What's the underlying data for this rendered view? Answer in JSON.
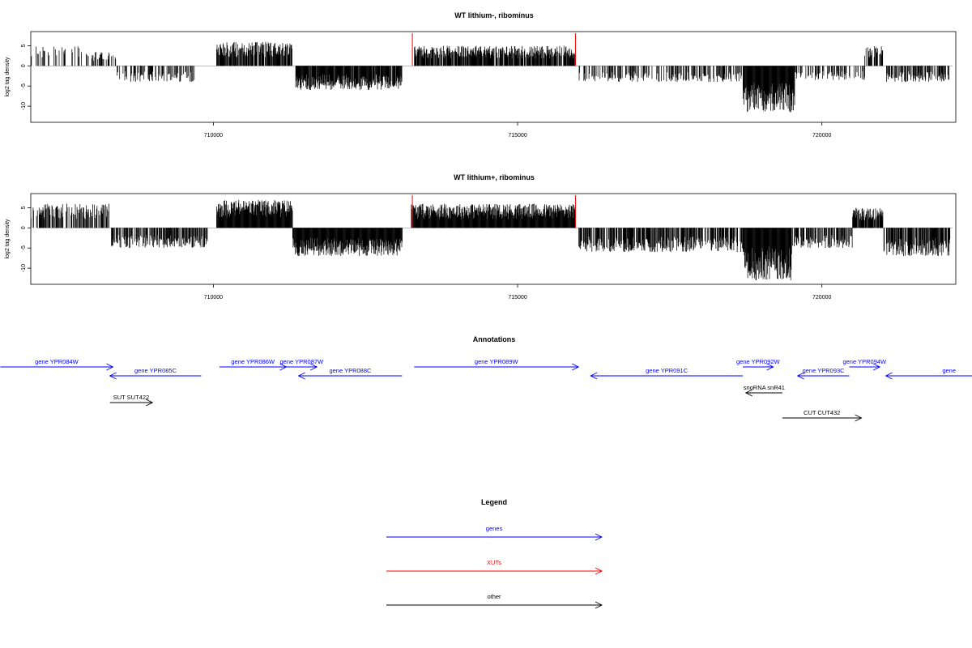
{
  "colors": {
    "genes": "#0000ff",
    "xuts": "#ff0000",
    "other": "#000000"
  },
  "chart_data": [
    {
      "type": "bar",
      "title": "WT lithium-, ribominus",
      "ylabel": "log2 tag density",
      "xlim": [
        707000,
        722200
      ],
      "ylim": [
        -14,
        8.5
      ],
      "xticks": [
        710000,
        715000,
        720000
      ],
      "xtick_labels": [
        "710000",
        "715000",
        "720000"
      ],
      "yticks": [
        5,
        0,
        -5,
        -10
      ],
      "ytick_labels": [
        "5",
        "0",
        "-5",
        "-10"
      ],
      "red_markers": [
        713270,
        715950
      ],
      "segments": [
        {
          "start": 707000,
          "end": 707900,
          "sign": 1,
          "max": 5,
          "density": 0.25
        },
        {
          "start": 707900,
          "end": 708400,
          "sign": 1,
          "max": 3.5,
          "density": 0.35
        },
        {
          "start": 708400,
          "end": 709700,
          "sign": -1,
          "max": 4,
          "density": 0.35
        },
        {
          "start": 710050,
          "end": 711300,
          "sign": 1,
          "max": 6,
          "density": 0.85
        },
        {
          "start": 711350,
          "end": 713100,
          "sign": -1,
          "max": 6,
          "density": 0.95
        },
        {
          "start": 713300,
          "end": 715950,
          "sign": 1,
          "max": 5,
          "density": 0.85
        },
        {
          "start": 716000,
          "end": 718700,
          "sign": -1,
          "max": 4,
          "density": 0.45
        },
        {
          "start": 718700,
          "end": 719550,
          "sign": -1,
          "max": 11.5,
          "density": 1.0
        },
        {
          "start": 719550,
          "end": 720700,
          "sign": -1,
          "max": 3.5,
          "density": 0.4
        },
        {
          "start": 720700,
          "end": 721000,
          "sign": 1,
          "max": 5,
          "density": 0.6
        },
        {
          "start": 721050,
          "end": 722100,
          "sign": -1,
          "max": 4,
          "density": 0.6
        }
      ]
    },
    {
      "type": "bar",
      "title": "WT lithium+, ribominus",
      "ylabel": "log2 tag density",
      "xlim": [
        707000,
        722200
      ],
      "ylim": [
        -14,
        8.5
      ],
      "xticks": [
        710000,
        715000,
        720000
      ],
      "xtick_labels": [
        "710000",
        "715000",
        "720000"
      ],
      "yticks": [
        5,
        0,
        -5,
        -10
      ],
      "ytick_labels": [
        "5",
        "0",
        "-5",
        "-10"
      ],
      "red_markers": [
        713270,
        715950
      ],
      "segments": [
        {
          "start": 707000,
          "end": 708300,
          "sign": 1,
          "max": 6,
          "density": 0.55
        },
        {
          "start": 708300,
          "end": 709900,
          "sign": -1,
          "max": 5,
          "density": 0.6
        },
        {
          "start": 710050,
          "end": 711300,
          "sign": 1,
          "max": 7,
          "density": 1.0
        },
        {
          "start": 711300,
          "end": 713100,
          "sign": -1,
          "max": 7,
          "density": 1.0
        },
        {
          "start": 713250,
          "end": 715950,
          "sign": 1,
          "max": 6,
          "density": 1.0
        },
        {
          "start": 716000,
          "end": 718700,
          "sign": -1,
          "max": 6,
          "density": 0.7
        },
        {
          "start": 718700,
          "end": 719500,
          "sign": -1,
          "max": 13,
          "density": 1.0
        },
        {
          "start": 719500,
          "end": 720500,
          "sign": -1,
          "max": 5,
          "density": 0.6
        },
        {
          "start": 720500,
          "end": 721000,
          "sign": 1,
          "max": 5,
          "density": 0.9
        },
        {
          "start": 721000,
          "end": 722100,
          "sign": -1,
          "max": 7,
          "density": 0.7
        }
      ]
    }
  ],
  "annotations": {
    "title": "Annotations",
    "features": [
      {
        "label": "gene YPR084W",
        "type": "genes",
        "start": 706500,
        "end": 708350,
        "strand": "+",
        "row": 0
      },
      {
        "label": "gene YPR085C",
        "type": "genes",
        "start": 708300,
        "end": 709800,
        "strand": "-",
        "row": 1
      },
      {
        "label": "gene YPR086W",
        "type": "genes",
        "start": 710100,
        "end": 711200,
        "strand": "+",
        "row": 0
      },
      {
        "label": "gene YPR087W",
        "type": "genes",
        "start": 711200,
        "end": 711700,
        "strand": "+",
        "row": 0
      },
      {
        "label": "gene YPR088C",
        "type": "genes",
        "start": 711400,
        "end": 713100,
        "strand": "-",
        "row": 1
      },
      {
        "label": "gene YPR089W",
        "type": "genes",
        "start": 713300,
        "end": 716000,
        "strand": "+",
        "row": 0
      },
      {
        "label": "gene YPR091C",
        "type": "genes",
        "start": 716200,
        "end": 718700,
        "strand": "-",
        "row": 1
      },
      {
        "label": "gene YPR092W",
        "type": "genes",
        "start": 718700,
        "end": 719200,
        "strand": "+",
        "row": 0
      },
      {
        "label": "gene YPR093C",
        "type": "genes",
        "start": 719600,
        "end": 720450,
        "strand": "-",
        "row": 1
      },
      {
        "label": "gene YPR094W",
        "type": "genes",
        "start": 720450,
        "end": 720950,
        "strand": "+",
        "row": 0
      },
      {
        "label": "gene",
        "type": "genes",
        "start": 721050,
        "end": 724000,
        "strand": "-",
        "row": 1
      },
      {
        "label": "SUT SUT422",
        "type": "other",
        "start": 708300,
        "end": 709000,
        "strand": "+",
        "row": 2
      },
      {
        "label": "snoRNA snR41",
        "type": "other",
        "start": 718750,
        "end": 719350,
        "strand": "-",
        "row": 3
      },
      {
        "label": "CUT CUT432",
        "type": "other",
        "start": 719350,
        "end": 720650,
        "strand": "+",
        "row": 4
      }
    ]
  },
  "legend": {
    "title": "Legend",
    "items": [
      {
        "label": "genes",
        "type": "genes"
      },
      {
        "label": "XUTs",
        "type": "xuts"
      },
      {
        "label": "other",
        "type": "other"
      }
    ]
  }
}
